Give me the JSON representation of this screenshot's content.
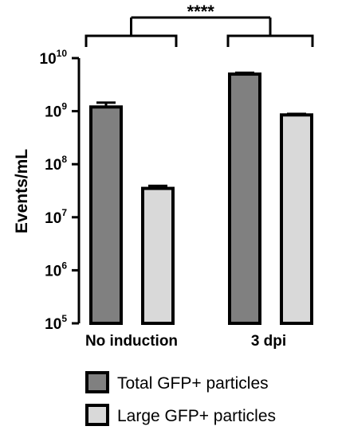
{
  "chart_data": {
    "type": "bar",
    "yscale": "log",
    "ylabel": "Events/mL",
    "ylim": [
      100000,
      10000000000
    ],
    "yticks": [
      {
        "base": "10",
        "exp": "5"
      },
      {
        "base": "10",
        "exp": "6"
      },
      {
        "base": "10",
        "exp": "7"
      },
      {
        "base": "10",
        "exp": "8"
      },
      {
        "base": "10",
        "exp": "9"
      },
      {
        "base": "10",
        "exp": "10"
      }
    ],
    "categories": [
      "No induction",
      "3 dpi"
    ],
    "series": [
      {
        "name": "Total GFP+ particles",
        "color": "#808080",
        "values": [
          1200000000,
          5000000000
        ],
        "error": [
          250000000,
          300000000
        ]
      },
      {
        "name": "Large GFP+ particles",
        "color": "#d9d9d9",
        "values": [
          35000000,
          850000000
        ],
        "error": [
          4000000,
          40000000
        ]
      }
    ],
    "annotations": [
      {
        "text": "****",
        "from": "No induction",
        "to": "3 dpi"
      }
    ],
    "legend": "bottom"
  }
}
